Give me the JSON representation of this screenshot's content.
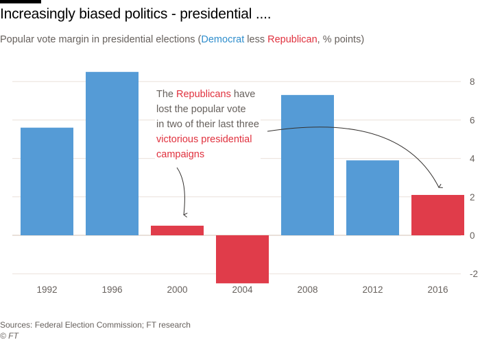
{
  "header": {
    "title": "Increasingly biased politics - presidential ....",
    "subtitle_parts": {
      "prefix": "Popular vote margin in presidential elections (",
      "dem": "Democrat",
      "mid": " less ",
      "rep": "Republican",
      "suffix": ", % points)"
    }
  },
  "annotation": {
    "line1_a": "The ",
    "line1_rep": "Republicans",
    "line1_b": " have",
    "line2": "lost the popular vote",
    "line3": "in two of their last three",
    "line4": "victorious presidential",
    "line5": "campaigns"
  },
  "footer": {
    "source": "Sources: Federal Election Commission; FT research",
    "copyright": "© FT"
  },
  "colors": {
    "democrat": "#559bd6",
    "republican": "#e03c4a",
    "grid": "#e9e0da",
    "text_dem": "#2e8dcc",
    "text_rep": "#e0303d"
  },
  "chart_data": {
    "type": "bar",
    "title": "Increasingly biased politics - presidential ....",
    "subtitle": "Popular vote margin in presidential elections (Democrat less Republican, % points)",
    "xlabel": "",
    "ylabel": "",
    "categories": [
      "1992",
      "1996",
      "2000",
      "2004",
      "2008",
      "2012",
      "2016"
    ],
    "values": [
      5.6,
      8.5,
      0.5,
      -2.5,
      7.3,
      3.9,
      2.1
    ],
    "winner": [
      "dem",
      "dem",
      "rep",
      "rep",
      "dem",
      "dem",
      "rep"
    ],
    "ylim": [
      -2.5,
      8.5
    ],
    "yticks": [
      -2,
      0,
      2,
      4,
      6,
      8
    ],
    "ytick_labels": [
      "-2",
      "0",
      "2",
      "4",
      "6",
      "8"
    ],
    "grid": true,
    "y_axis_side": "right"
  }
}
